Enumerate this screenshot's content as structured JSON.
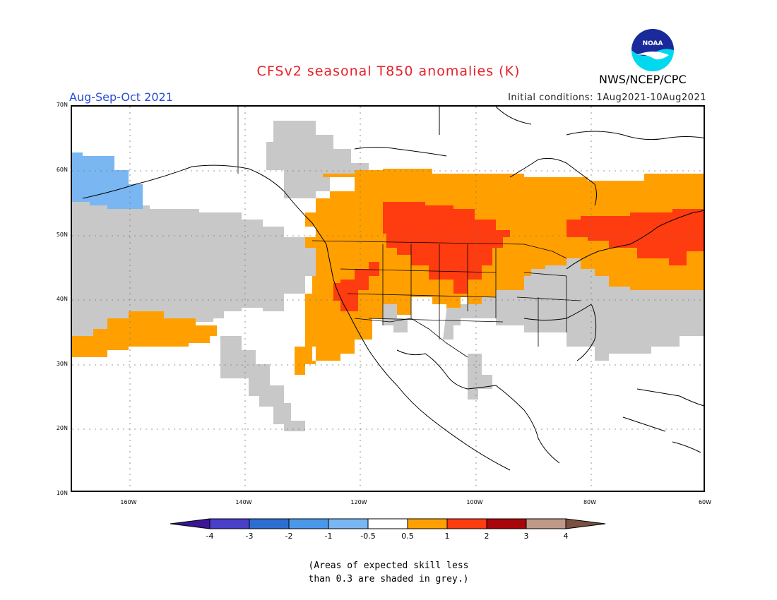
{
  "header": {
    "title": "CFSv2 seasonal T850 anomalies (K)",
    "season": "Aug-Sep-Oct 2021",
    "initial_conditions": "Initial conditions: 1Aug2021-10Aug2021",
    "org": "NWS/NCEP/CPC",
    "logo_text": "NOAA"
  },
  "map": {
    "lat_labels": [
      "70N",
      "60N",
      "50N",
      "40N",
      "30N",
      "20N",
      "10N"
    ],
    "lon_labels": [
      "160W",
      "140W",
      "120W",
      "100W",
      "80W",
      "60W"
    ]
  },
  "colorbar": {
    "labels": [
      "-4",
      "-3",
      "-2",
      "-1",
      "-0.5",
      "0.5",
      "1",
      "2",
      "3",
      "4"
    ],
    "colors": [
      "#3a1596",
      "#4a3fc8",
      "#2c6fd0",
      "#4a98ea",
      "#7ab6f2",
      "#ffffff",
      "#ffa000",
      "#ff3b10",
      "#a8040a",
      "#c09888",
      "#7a5040"
    ]
  },
  "colors": {
    "grey_low_skill": "#c8c8c8",
    "positive_05_1": "#ffa000",
    "positive_1_2": "#ff3b10",
    "negative_1_05": "#7ab6f2"
  },
  "footnote": {
    "line1": "(Areas of expected skill less",
    "line2": "than 0.3 are shaded in grey.)"
  }
}
